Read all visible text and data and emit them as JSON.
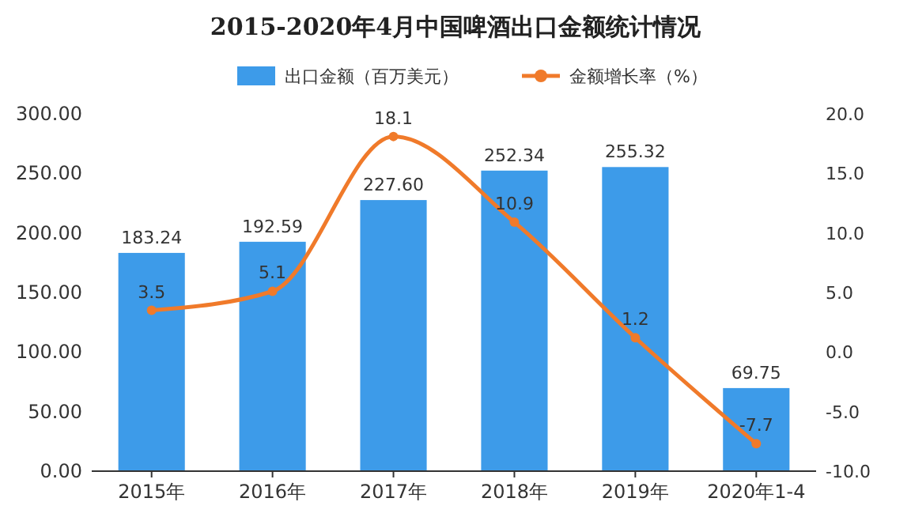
{
  "chart_data": {
    "type": "bar",
    "title": "2015-2020年4月中国啤酒出口金额统计情况",
    "categories": [
      "2015年",
      "2016年",
      "2017年",
      "2018年",
      "2019年",
      "2020年1-4"
    ],
    "series": [
      {
        "name": "出口金额（百万美元）",
        "color": "#3d9be9",
        "values": [
          183.24,
          192.59,
          227.6,
          252.34,
          255.32,
          69.75
        ],
        "value_labels": [
          "183.24",
          "192.59",
          "227.60",
          "252.34",
          "255.32",
          "69.75"
        ]
      },
      {
        "name": "金额增长率（%）",
        "type": "line",
        "axis": "y2",
        "color": "#f07a2a",
        "marker": "circle",
        "values": [
          3.5,
          5.1,
          18.1,
          10.9,
          1.2,
          -7.7
        ],
        "value_labels": [
          "3.5",
          "5.1",
          "18.1",
          "10.9",
          "1.2",
          "-7.7"
        ]
      }
    ],
    "ylim": [
      0,
      300
    ],
    "yticks": [
      {
        "value": 0,
        "label": "0.00"
      },
      {
        "value": 50,
        "label": "50.00"
      },
      {
        "value": 100,
        "label": "100.00"
      },
      {
        "value": 150,
        "label": "150.00"
      },
      {
        "value": 200,
        "label": "200.00"
      },
      {
        "value": 250,
        "label": "250.00"
      },
      {
        "value": 300,
        "label": "300.00"
      }
    ],
    "y2lim": [
      -10,
      20
    ],
    "y2ticks": [
      {
        "value": -10,
        "label": "-10.0"
      },
      {
        "value": -5,
        "label": "-5.0"
      },
      {
        "value": 0,
        "label": "0.0"
      },
      {
        "value": 5,
        "label": "5.0"
      },
      {
        "value": 10,
        "label": "10.0"
      },
      {
        "value": 15,
        "label": "15.0"
      },
      {
        "value": 20,
        "label": "20.0"
      }
    ],
    "legend": "top",
    "grid": false
  }
}
